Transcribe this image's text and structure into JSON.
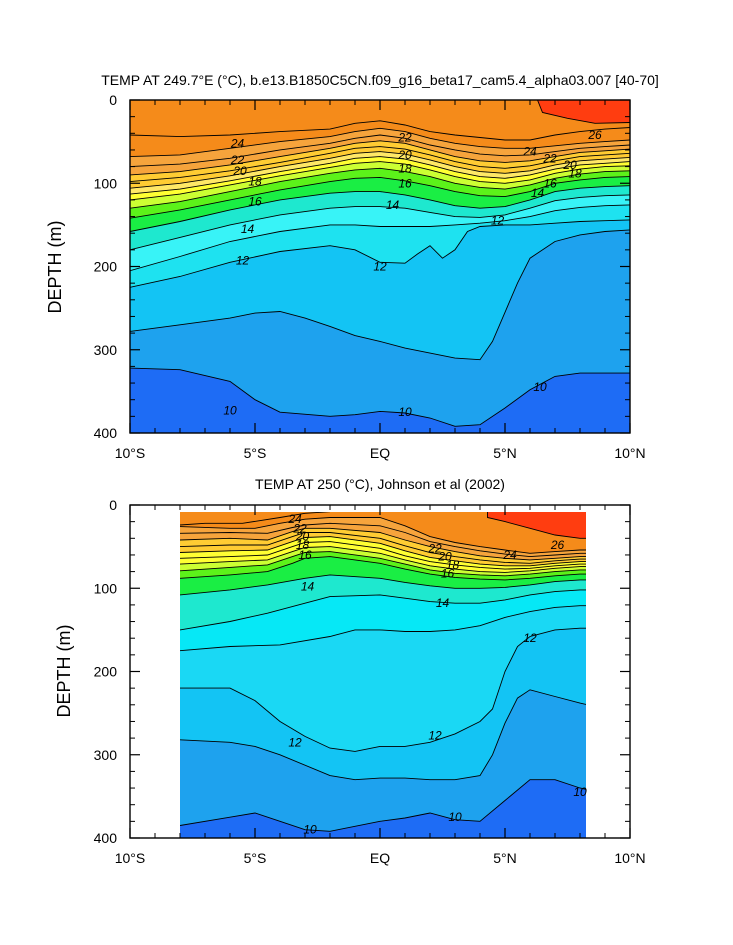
{
  "chart_data": [
    {
      "type": "contour",
      "title": "TEMP AT 249.7°E (°C), b.e13.B1850C5CN.f09_g16_beta17_cam5.4_alpha03.007 [40-70]",
      "ylabel": "DEPTH (m)",
      "xlabel": "",
      "xlim": [
        -10,
        10
      ],
      "ylim": [
        0,
        400
      ],
      "y_inverted": true,
      "x_ticks": [
        {
          "value": -10,
          "label": "10°S"
        },
        {
          "value": -5,
          "label": "5°S"
        },
        {
          "value": 0,
          "label": "EQ"
        },
        {
          "value": 5,
          "label": "5°N"
        },
        {
          "value": 10,
          "label": "10°N"
        }
      ],
      "y_ticks": [
        {
          "value": 0,
          "label": "0"
        },
        {
          "value": 100,
          "label": "100"
        },
        {
          "value": 200,
          "label": "200"
        },
        {
          "value": 300,
          "label": "300"
        },
        {
          "value": 400,
          "label": "400"
        }
      ],
      "contour_levels_degC": [
        10,
        11,
        12,
        13,
        14,
        15,
        16,
        17,
        18,
        19,
        20,
        21,
        22,
        23,
        24,
        25,
        26
      ],
      "contour_labels": [
        {
          "text": "26",
          "x": 8.6,
          "y": 42
        },
        {
          "text": "24",
          "x": -5.7,
          "y": 52
        },
        {
          "text": "22",
          "x": -5.7,
          "y": 72
        },
        {
          "text": "20",
          "x": -5.6,
          "y": 85
        },
        {
          "text": "18",
          "x": -5.0,
          "y": 98
        },
        {
          "text": "16",
          "x": -5.0,
          "y": 122
        },
        {
          "text": "14",
          "x": -5.3,
          "y": 155
        },
        {
          "text": "12",
          "x": -5.5,
          "y": 193
        },
        {
          "text": "22",
          "x": 1.0,
          "y": 45
        },
        {
          "text": "20",
          "x": 1.0,
          "y": 66
        },
        {
          "text": "18",
          "x": 1.0,
          "y": 82
        },
        {
          "text": "16",
          "x": 1.0,
          "y": 100
        },
        {
          "text": "14",
          "x": 0.5,
          "y": 126
        },
        {
          "text": "12",
          "x": 0.0,
          "y": 200
        },
        {
          "text": "12",
          "x": 4.7,
          "y": 145
        },
        {
          "text": "24",
          "x": 6.0,
          "y": 62
        },
        {
          "text": "22",
          "x": 6.8,
          "y": 70
        },
        {
          "text": "20",
          "x": 7.6,
          "y": 78
        },
        {
          "text": "18",
          "x": 7.8,
          "y": 88
        },
        {
          "text": "16",
          "x": 6.8,
          "y": 100
        },
        {
          "text": "14",
          "x": 6.3,
          "y": 112
        },
        {
          "text": "10",
          "x": -6.0,
          "y": 373
        },
        {
          "text": "10",
          "x": 1.0,
          "y": 375
        },
        {
          "text": "10",
          "x": 6.4,
          "y": 345
        }
      ],
      "colors": {
        "gt26": "#ff3d10",
        "c24_26": "#f58b1a",
        "c22_24": "#f6a43c",
        "c20_22": "#ffcc33",
        "c19_20": "#ffe866",
        "c18_19": "#ffff33",
        "c17_18": "#ccff33",
        "c16_17": "#5cf21a",
        "c15_16": "#1aee44",
        "c14_15": "#1ee8cf",
        "c13_14": "#38f3f7",
        "c12_13": "#1ee2f0",
        "c11_12": "#13c4f4",
        "c10_11": "#1ea2ee",
        "lt10": "#1e6cf5"
      }
    },
    {
      "type": "contour",
      "title": "TEMP AT 250 (°C), Johnson et al (2002)",
      "ylabel": "DEPTH (m)",
      "xlabel": "",
      "xlim": [
        -10,
        10
      ],
      "ylim": [
        0,
        400
      ],
      "y_inverted": true,
      "data_extent_x": [
        -8,
        8.3
      ],
      "data_extent_y": [
        8,
        400
      ],
      "x_ticks": [
        {
          "value": -10,
          "label": "10°S"
        },
        {
          "value": -5,
          "label": "5°S"
        },
        {
          "value": 0,
          "label": "EQ"
        },
        {
          "value": 5,
          "label": "5°N"
        },
        {
          "value": 10,
          "label": "10°N"
        }
      ],
      "y_ticks": [
        {
          "value": 0,
          "label": "0"
        },
        {
          "value": 100,
          "label": "100"
        },
        {
          "value": 200,
          "label": "200"
        },
        {
          "value": 300,
          "label": "300"
        },
        {
          "value": 400,
          "label": "400"
        }
      ],
      "contour_levels_degC": [
        10,
        11,
        12,
        13,
        14,
        15,
        16,
        17,
        18,
        19,
        20,
        21,
        22,
        23,
        24,
        25,
        26
      ],
      "contour_labels": [
        {
          "text": "24",
          "x": -3.4,
          "y": 17
        },
        {
          "text": "22",
          "x": -3.2,
          "y": 28
        },
        {
          "text": "20",
          "x": -3.1,
          "y": 38
        },
        {
          "text": "18",
          "x": -3.1,
          "y": 48
        },
        {
          "text": "16",
          "x": -3.0,
          "y": 60
        },
        {
          "text": "14",
          "x": -2.9,
          "y": 98
        },
        {
          "text": "22",
          "x": 2.2,
          "y": 52
        },
        {
          "text": "20",
          "x": 2.6,
          "y": 62
        },
        {
          "text": "18",
          "x": 2.9,
          "y": 72
        },
        {
          "text": "16",
          "x": 2.7,
          "y": 82
        },
        {
          "text": "14",
          "x": 2.5,
          "y": 118
        },
        {
          "text": "24",
          "x": 5.2,
          "y": 60
        },
        {
          "text": "26",
          "x": 7.1,
          "y": 48
        },
        {
          "text": "12",
          "x": 6.0,
          "y": 160
        },
        {
          "text": "12",
          "x": -3.4,
          "y": 285
        },
        {
          "text": "12",
          "x": 2.2,
          "y": 277
        },
        {
          "text": "10",
          "x": -2.8,
          "y": 390
        },
        {
          "text": "10",
          "x": 3.0,
          "y": 375
        },
        {
          "text": "10",
          "x": 8.0,
          "y": 345
        }
      ],
      "colors": {
        "gt26": "#ff3d10",
        "c24_26": "#f58b1a",
        "c22_24": "#f6a43c",
        "c20_22": "#ffcc33",
        "c18_20": "#ffff33",
        "c17_18": "#ccff33",
        "c16_17": "#5cf21a",
        "c15_16": "#1aee44",
        "c14_15": "#1ee8cf",
        "c13_14": "#06e8f6",
        "c12_13": "#1ad8f4",
        "c11_12": "#13c4f4",
        "c10_11": "#1ea2ee",
        "lt10": "#1e6cf5"
      }
    }
  ]
}
